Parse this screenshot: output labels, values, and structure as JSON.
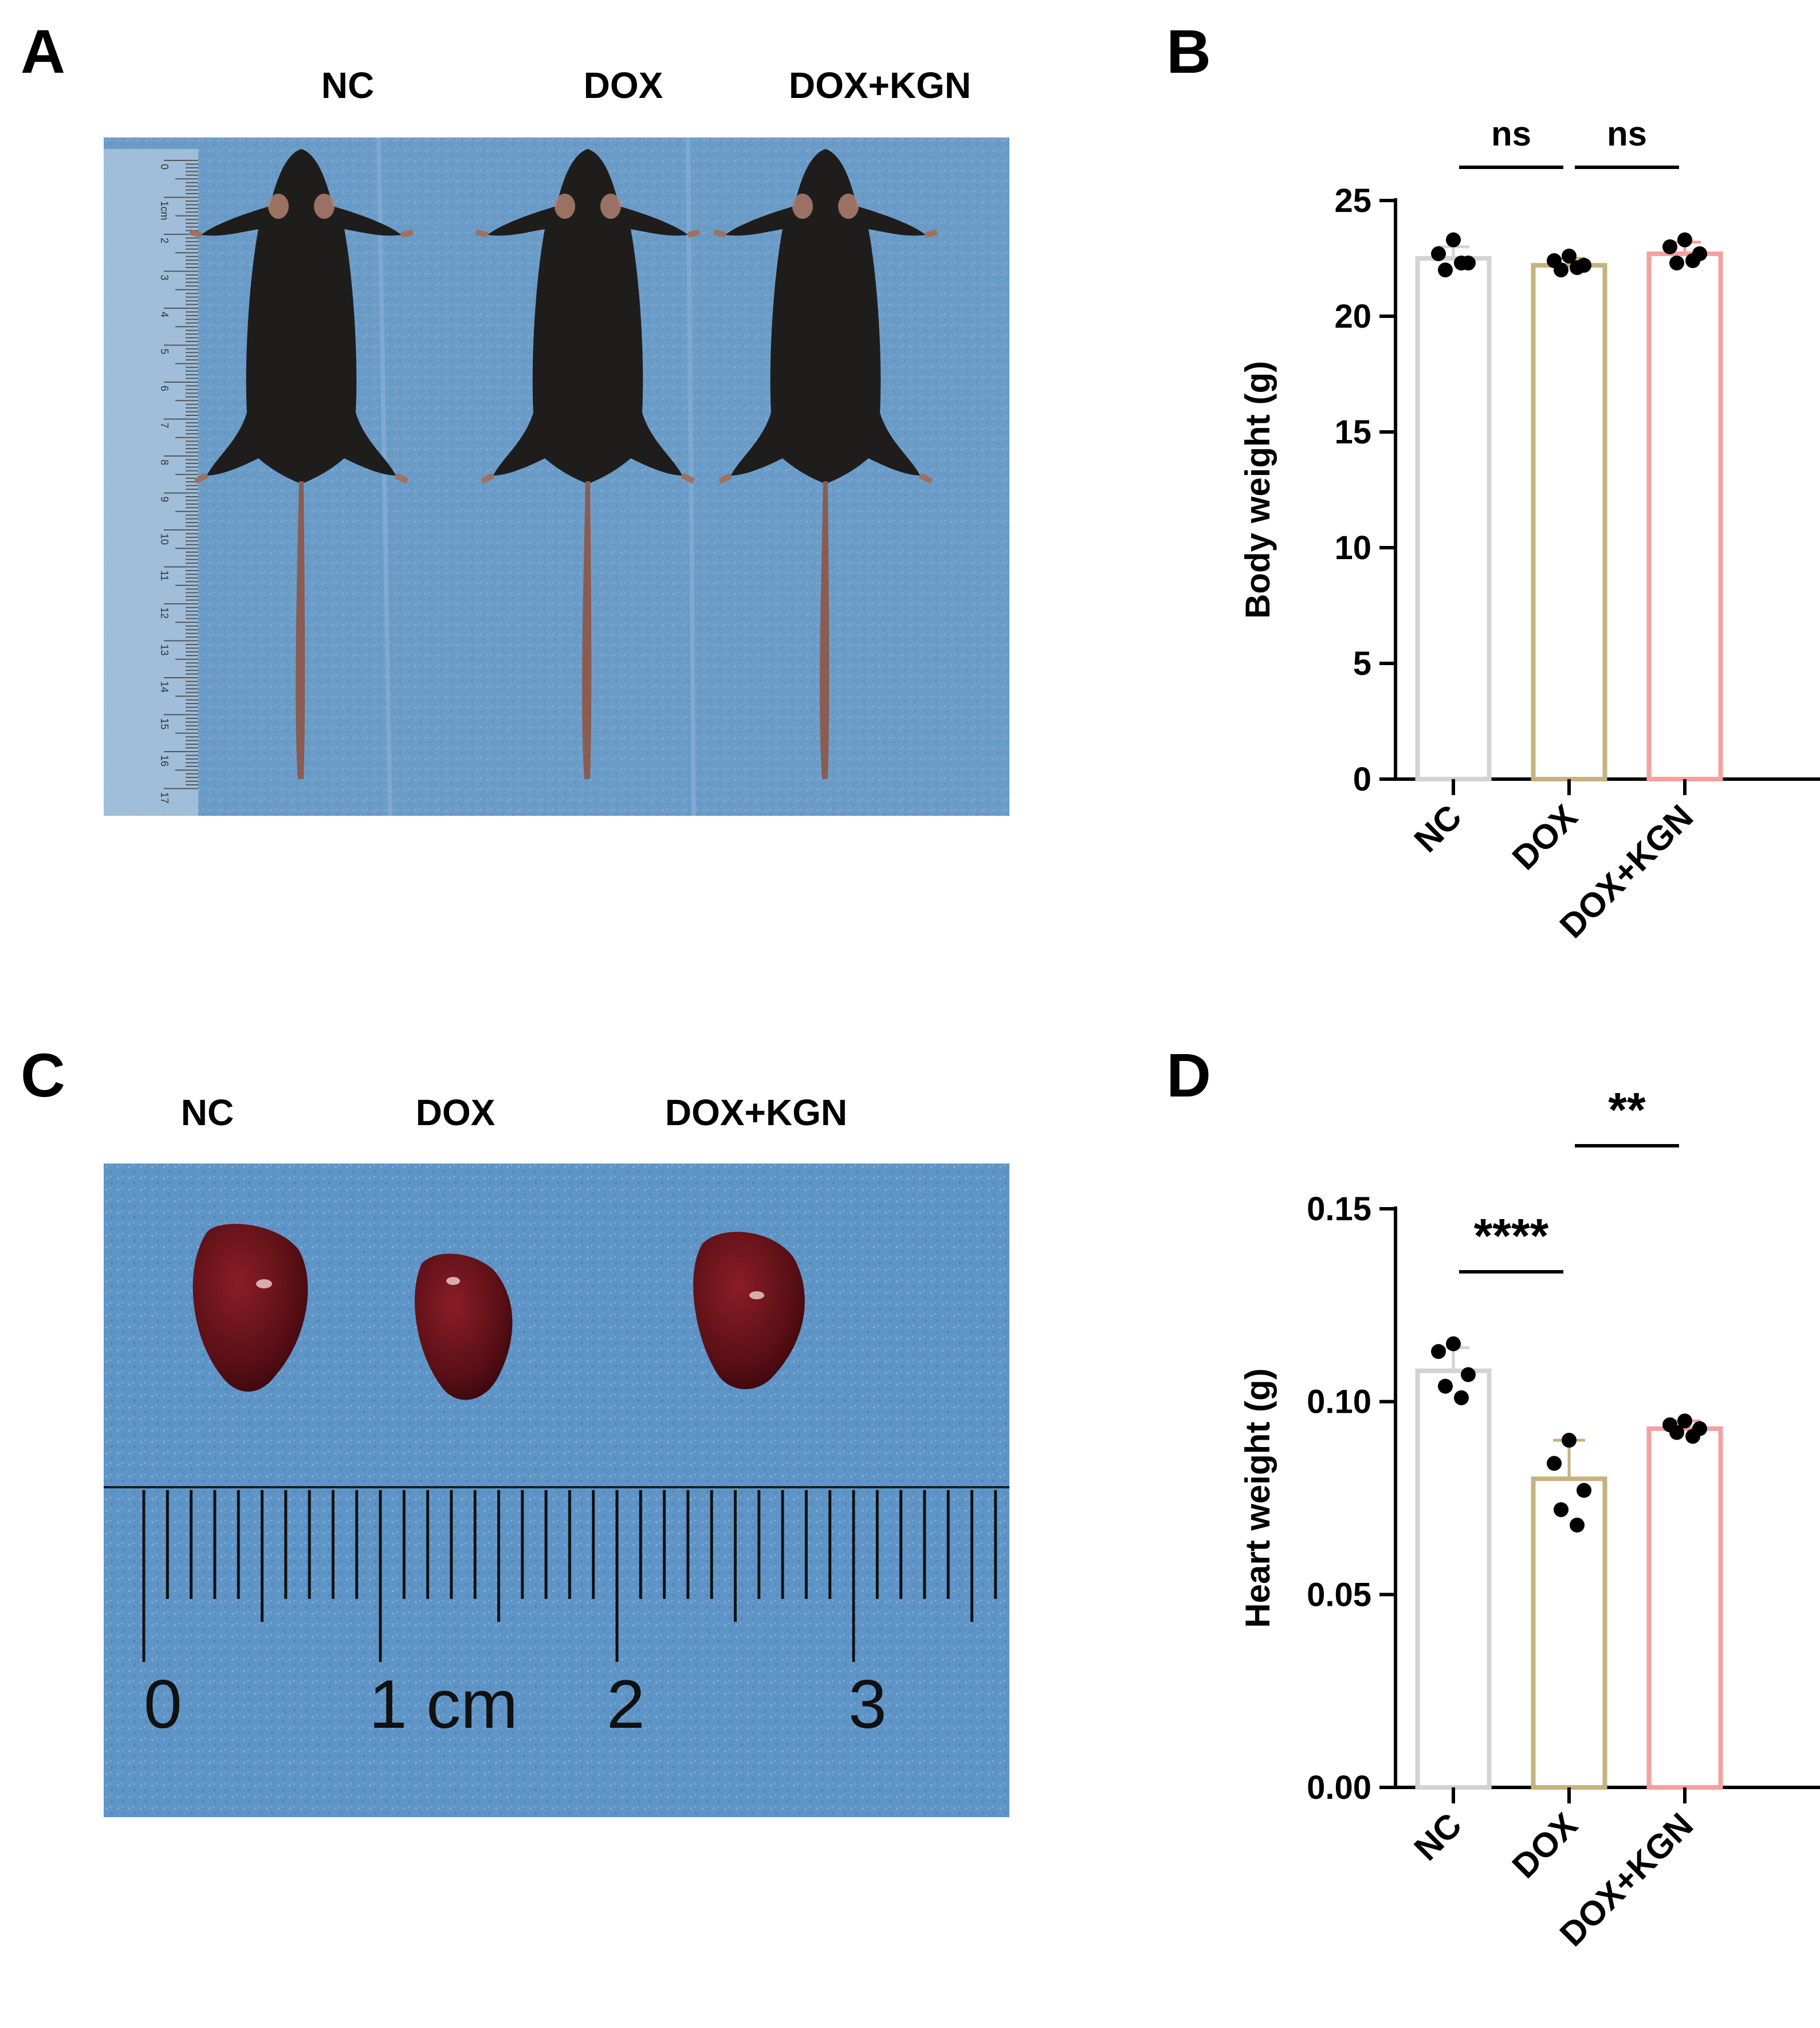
{
  "panels": {
    "A": {
      "letter": "A",
      "groups": [
        "NC",
        "DOX",
        "DOX+KGN"
      ],
      "ruler_ticks": [
        "0",
        "1cm",
        "2",
        "3",
        "4",
        "5",
        "6",
        "7",
        "8",
        "9",
        "10",
        "11",
        "12",
        "13",
        "14",
        "15",
        "16",
        "17"
      ]
    },
    "C": {
      "letter": "C",
      "groups": [
        "NC",
        "DOX",
        "DOX+KGN"
      ],
      "ruler_labels": [
        "0",
        "1 cm",
        "2",
        "3"
      ]
    },
    "B": {
      "letter": "B"
    },
    "D": {
      "letter": "D"
    }
  },
  "colors": {
    "NC": "#d3d3d3",
    "DOX": "#c6b27f",
    "DOX+KGN": "#f4a0a0",
    "cloth": "#6b9cc8",
    "cloth_dark": "#4f86ba",
    "mouse": "#1e1d1c",
    "heart": "#5a0f16"
  },
  "chart_data": [
    {
      "panel": "B",
      "type": "bar",
      "categories": [
        "NC",
        "DOX",
        "DOX+KGN"
      ],
      "values": [
        22.5,
        22.2,
        22.7
      ],
      "errors": [
        0.5,
        0.3,
        0.5
      ],
      "points": [
        [
          23.3,
          22.7,
          22.3,
          22.0,
          22.3
        ],
        [
          22.6,
          22.4,
          22.2,
          22.0,
          22.1
        ],
        [
          23.3,
          23.0,
          22.7,
          22.3,
          22.4
        ]
      ],
      "ylabel": "Body weight (g)",
      "ylim": [
        0,
        25
      ],
      "yticks": [
        "0",
        "5",
        "10",
        "15",
        "20",
        "25"
      ],
      "significance": [
        {
          "from": 0,
          "to": 1,
          "label": "ns"
        },
        {
          "from": 1,
          "to": 2,
          "label": "ns"
        }
      ]
    },
    {
      "panel": "D",
      "type": "bar",
      "categories": [
        "NC",
        "DOX",
        "DOX+KGN"
      ],
      "values": [
        0.108,
        0.08,
        0.093
      ],
      "errors": [
        0.006,
        0.01,
        0.002
      ],
      "points": [
        [
          0.115,
          0.113,
          0.107,
          0.104,
          0.101
        ],
        [
          0.09,
          0.084,
          0.077,
          0.072,
          0.068
        ],
        [
          0.095,
          0.094,
          0.093,
          0.092,
          0.091
        ]
      ],
      "ylabel": "Heart weight (g)",
      "ylim": [
        0,
        0.15
      ],
      "yticks": [
        "0.00",
        "0.05",
        "0.10",
        "0.15"
      ],
      "significance": [
        {
          "from": 0,
          "to": 1,
          "label": "****"
        },
        {
          "from": 1,
          "to": 2,
          "label": "**"
        }
      ]
    }
  ]
}
